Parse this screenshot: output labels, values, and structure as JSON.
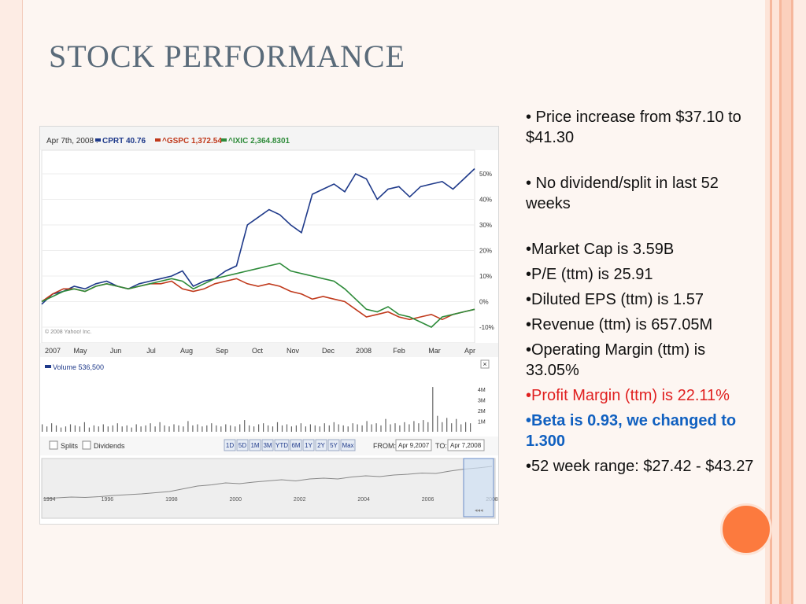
{
  "slide": {
    "title": "STOCK PERFORMANCE"
  },
  "bullets": [
    {
      "text": "•    Price increase from $37.10 to $41.30"
    },
    {
      "text": "•    No dividend/split in last 52 weeks"
    },
    {
      "text": "•Market Cap is 3.59B"
    },
    {
      "text": "•P/E (ttm) is 25.91"
    },
    {
      "text": "•Diluted EPS (ttm) is 1.57"
    },
    {
      "text": "•Revenue (ttm) is 657.05M"
    },
    {
      "text": "•Operating Margin (ttm) is 33.05%"
    },
    {
      "text": "•Profit Margin (ttm) is 22.11%"
    },
    {
      "text": "•",
      "bold": "Beta is 0.93, we changed to 1.300"
    },
    {
      "text": "•52 week range: $27.42 - $43.27"
    }
  ],
  "colors": {
    "accent_orange": "#fc7a3e",
    "profit_red": "#e02020",
    "beta_blue": "#1060c0",
    "cprt": "#1f3a8a",
    "gspc": "#c0391b",
    "ixic": "#2e8b3a"
  },
  "chart_data": {
    "type": "line",
    "date_label": "Apr 7th, 2008 :",
    "series": [
      {
        "name": "CPRT",
        "label": "CPRT 40.76",
        "color": "#1f3a8a",
        "values": [
          -1,
          3,
          4,
          6,
          5,
          7,
          8,
          6,
          5,
          7,
          8,
          9,
          10,
          12,
          6,
          8,
          9,
          12,
          14,
          30,
          33,
          36,
          34,
          30,
          27,
          42,
          44,
          46,
          43,
          50,
          48,
          40,
          44,
          45,
          41,
          45,
          46,
          47,
          44,
          48,
          52
        ]
      },
      {
        "name": "^GSPC",
        "label": "^GSPC 1,372.54",
        "color": "#c0391b",
        "values": [
          0,
          3,
          5,
          5,
          4,
          6,
          7,
          6,
          5,
          6,
          7,
          7,
          8,
          5,
          4,
          5,
          7,
          8,
          9,
          7,
          6,
          7,
          6,
          4,
          3,
          1,
          2,
          1,
          0,
          -3,
          -6,
          -5,
          -4,
          -6,
          -7,
          -6,
          -5,
          -7,
          -5,
          -4,
          -3
        ]
      },
      {
        "name": "^IXIC",
        "label": "^IXIC 2,364.8301",
        "color": "#2e8b3a",
        "values": [
          0,
          2,
          4,
          5,
          4,
          6,
          7,
          6,
          5,
          6,
          7,
          8,
          9,
          8,
          5,
          7,
          9,
          10,
          11,
          12,
          13,
          14,
          15,
          12,
          11,
          10,
          9,
          8,
          5,
          1,
          -3,
          -4,
          -2,
          -5,
          -6,
          -8,
          -10,
          -6,
          -5,
          -4,
          -3
        ]
      }
    ],
    "y_ticks": [
      "50%",
      "40%",
      "30%",
      "20%",
      "10%",
      "0%",
      "-10%"
    ],
    "y_range": [
      -10,
      50
    ],
    "x_ticks": [
      "2007",
      "May",
      "Jun",
      "Jul",
      "Aug",
      "Sep",
      "Oct",
      "Nov",
      "Dec",
      "2008",
      "Feb",
      "Mar",
      "Apr"
    ],
    "copyright": "© 2008 Yahoo! Inc.",
    "volume_label": "Volume 536,500",
    "volume_ticks": [
      "4M",
      "3M",
      "2M",
      "1M"
    ],
    "volume_unit": "M",
    "volume_values": [
      0.7,
      0.5,
      0.8,
      0.6,
      0.4,
      0.5,
      0.7,
      0.6,
      0.5,
      0.9,
      0.4,
      0.6,
      0.5,
      0.7,
      0.5,
      0.6,
      0.8,
      0.5,
      0.6,
      0.4,
      0.7,
      0.5,
      0.6,
      0.8,
      0.5,
      0.9,
      0.6,
      0.5,
      0.7,
      0.6,
      0.5,
      1.0,
      0.6,
      0.7,
      0.5,
      0.6,
      0.8,
      0.6,
      0.5,
      0.7,
      0.6,
      0.5,
      0.7,
      1.1,
      0.6,
      0.5,
      0.7,
      0.8,
      0.6,
      0.5,
      0.9,
      0.6,
      0.7,
      0.5,
      0.6,
      0.8,
      0.5,
      0.7,
      0.6,
      0.5,
      0.8,
      0.6,
      0.9,
      0.7,
      0.6,
      0.5,
      0.8,
      0.7,
      0.6,
      1.0,
      0.7,
      0.8,
      0.6,
      1.2,
      0.7,
      0.8,
      0.6,
      0.9,
      0.7,
      1.0,
      0.8,
      1.1,
      0.9,
      4.2,
      1.5,
      0.9,
      1.3,
      0.8,
      1.2,
      0.7,
      0.9,
      0.8
    ],
    "checkboxes": [
      "Splits",
      "Dividends"
    ],
    "range_buttons": [
      "1D",
      "5D",
      "1M",
      "3M",
      "YTD",
      "6M",
      "1Y",
      "2Y",
      "5Y",
      "Max"
    ],
    "from_label": "FROM:",
    "from_value": "Apr 9,2007",
    "to_label": "TO:",
    "to_value": "Apr 7,2008",
    "overview_years": [
      "1994",
      "1996",
      "1998",
      "2000",
      "2002",
      "2004",
      "2006",
      "2008"
    ],
    "overview_values": [
      0.1,
      0.12,
      0.14,
      0.13,
      0.15,
      0.18,
      0.2,
      0.22,
      0.25,
      0.28,
      0.35,
      0.42,
      0.45,
      0.5,
      0.48,
      0.52,
      0.55,
      0.58,
      0.55,
      0.6,
      0.62,
      0.6,
      0.65,
      0.68,
      0.66,
      0.7,
      0.72,
      0.75,
      0.74,
      0.8,
      0.85,
      0.88,
      0.92
    ]
  }
}
